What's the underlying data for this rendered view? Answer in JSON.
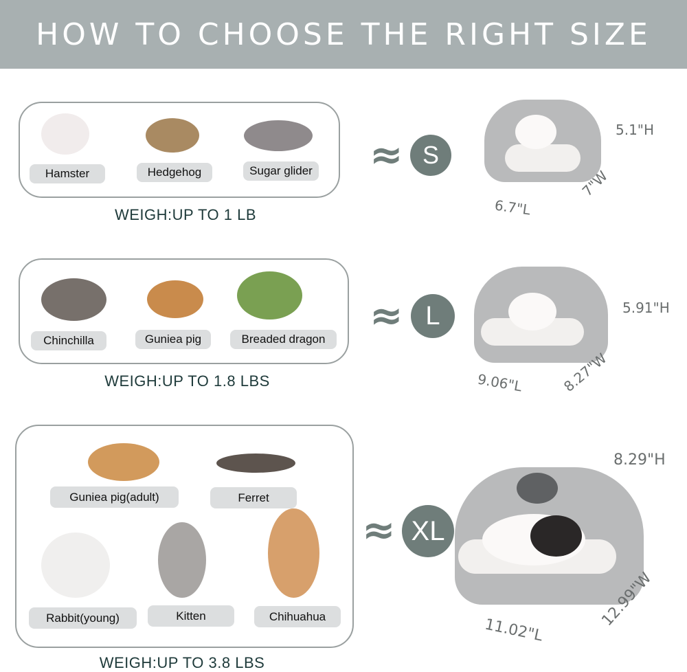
{
  "title": "HOW TO CHOOSE THE RIGHT SIZE",
  "approx_symbol": "≈",
  "sizes": [
    {
      "badge": "S",
      "weight": "WEIGH:UP TO 1 LB",
      "animals": [
        "Hamster",
        "Hedgehog",
        "Sugar glider"
      ],
      "dims": {
        "h": "5.1\"H",
        "l": "6.7\"L",
        "w": "7\"W"
      }
    },
    {
      "badge": "L",
      "weight": "WEIGH:UP TO 1.8 LBS",
      "animals": [
        "Chinchilla",
        "Guniea pig",
        "Breaded dragon"
      ],
      "dims": {
        "h": "5.91\"H",
        "l": "9.06\"L",
        "w": "8.27\"W"
      }
    },
    {
      "badge": "XL",
      "weight": "WEIGH:UP TO 3.8 LBS",
      "animals": [
        "Guniea pig(adult)",
        "Ferret",
        "Rabbit(young)",
        "Kitten",
        "Chihuahua"
      ],
      "dims": {
        "h": "8.29\"H",
        "l": "11.02\"L",
        "w": "12.99\"W"
      }
    }
  ],
  "colors": {
    "header": "#a8b0b1",
    "badge": "#6f7d7a",
    "text": "#1e3a3a",
    "pill": "#dcdedf"
  }
}
